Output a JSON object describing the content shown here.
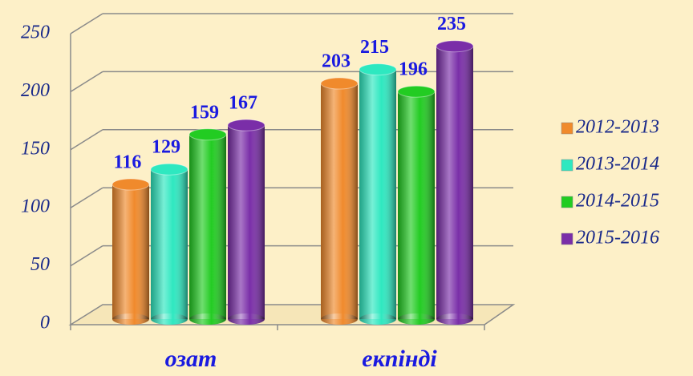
{
  "chart_data": {
    "type": "bar",
    "categories": [
      "озат",
      "екпінді"
    ],
    "series": [
      {
        "name": "2012-2013",
        "color": "#f08a2c",
        "values": [
          116,
          203
        ]
      },
      {
        "name": "2013-2014",
        "color": "#2ee8c0",
        "values": [
          129,
          215
        ]
      },
      {
        "name": "2014-2015",
        "color": "#22cc22",
        "values": [
          159,
          196
        ]
      },
      {
        "name": "2015-2016",
        "color": "#7a2ea8",
        "values": [
          167,
          235
        ]
      }
    ],
    "ylim": [
      0,
      250
    ],
    "yticks": [
      0,
      50,
      100,
      150,
      200,
      250
    ],
    "grid": true,
    "legend": "right"
  }
}
